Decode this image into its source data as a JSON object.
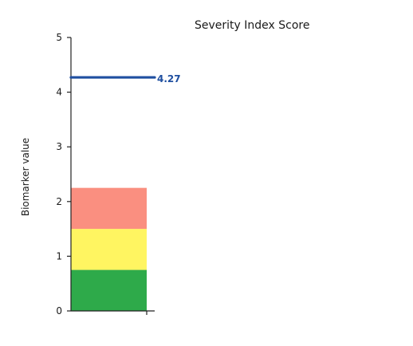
{
  "chart_data": {
    "type": "bar",
    "title": "Severity Index Score",
    "xlabel": "",
    "ylabel": "Biomarker value",
    "ylim": [
      0,
      5
    ],
    "yticks": [
      0,
      1,
      2,
      3,
      4,
      5
    ],
    "grid": false,
    "bands": [
      {
        "from": 0,
        "to": 0.75,
        "color": "#2eaa4a"
      },
      {
        "from": 0.75,
        "to": 1.5,
        "color": "#fff561"
      },
      {
        "from": 1.5,
        "to": 2.25,
        "color": "#fa8f80"
      }
    ],
    "value": 4.27,
    "value_label": "4.27",
    "value_color": "#1f4fa0"
  }
}
